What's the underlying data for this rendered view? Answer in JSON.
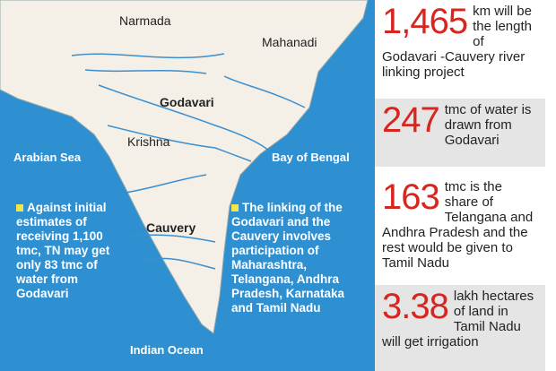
{
  "map": {
    "labels": {
      "narmada": "Narmada",
      "mahanadi": "Mahanadi",
      "godavari": "Godavari",
      "krishna": "Krishna",
      "cauvery": "Cauvery",
      "arabian_sea": "Arabian Sea",
      "bay_of_bengal": "Bay of Bengal",
      "indian_ocean": "Indian Ocean"
    },
    "notes": [
      "Against initial estimates of receiving 1,100 tmc, TN may get only 83 tmc of water from Godavari",
      "The linking of the Godavari and the Cauvery involves participation of Maharashtra, Telangana, Andhra Pradesh, Karnataka and Tamil Nadu"
    ]
  },
  "stats": [
    {
      "number": "1,465",
      "text": "km will be the length of Godavari -Cauvery river linking project"
    },
    {
      "number": "247",
      "text": "tmc of water is drawn from Godavari"
    },
    {
      "number": "163",
      "text": "tmc is the share of Telangana and Andhra Pradesh and the rest would be given to Tamil Nadu"
    },
    {
      "number": "3.38",
      "text": "lakh hectares of land in Tamil Nadu will get irrigation"
    }
  ]
}
